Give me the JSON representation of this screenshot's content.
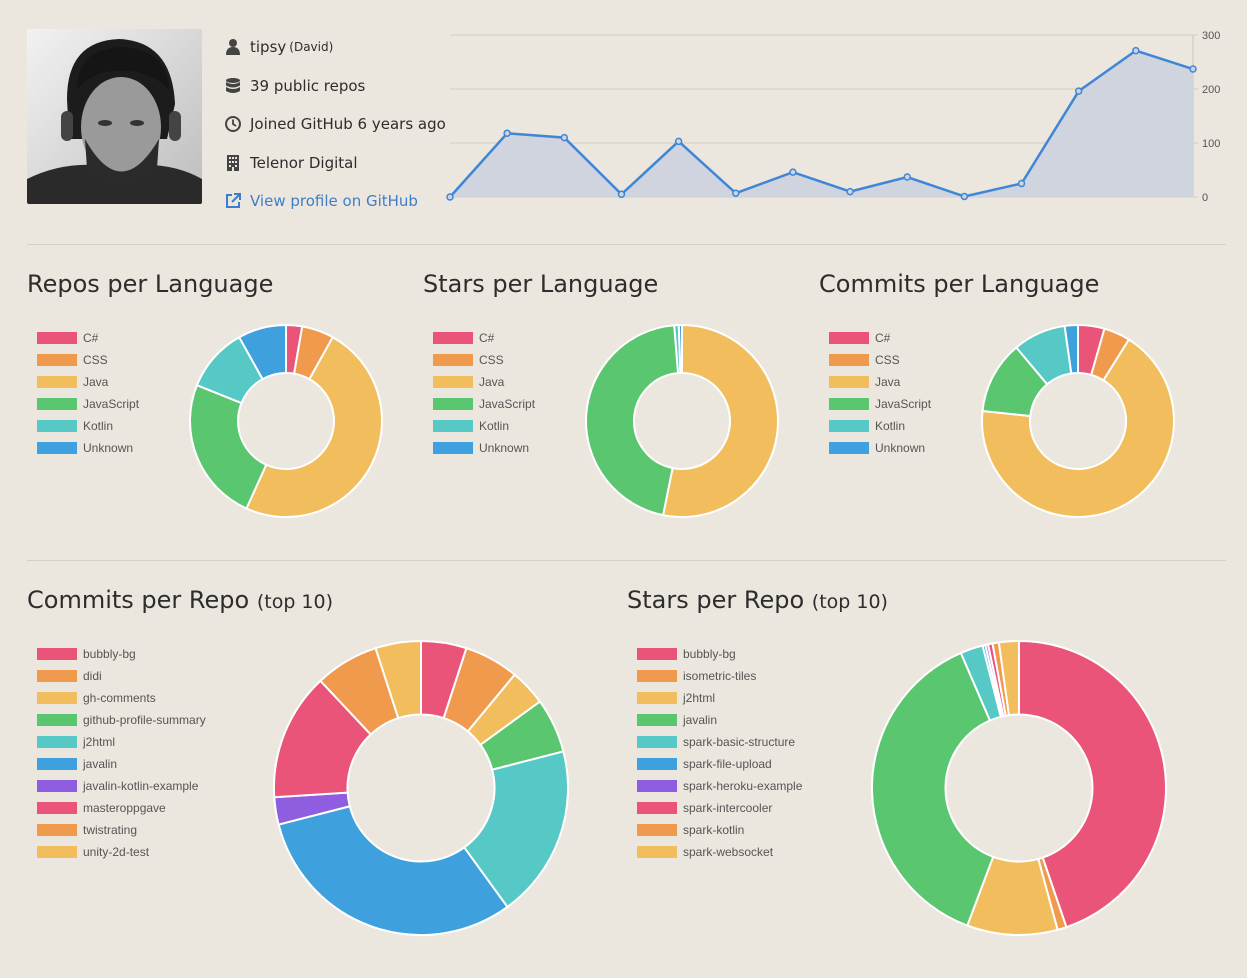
{
  "profile": {
    "username": "tipsy",
    "name": "(David)",
    "repos": "39 public repos",
    "joined": "Joined GitHub 6 years ago",
    "company": "Telenor Digital",
    "link_label": "View profile on GitHub"
  },
  "colors": [
    "#ea5478",
    "#f09a4e",
    "#f2bd5c",
    "#5ac66f",
    "#56c8c6",
    "#3ea1de",
    "#8e5de0",
    "#ea5478",
    "#f09a4e",
    "#f2bd5c"
  ],
  "chart_data": [
    {
      "id": "activity",
      "type": "area",
      "title": "",
      "values": [
        0,
        118,
        110,
        5,
        103,
        7,
        46,
        10,
        37,
        1,
        25,
        196,
        271,
        237
      ],
      "ylim": [
        0,
        300
      ],
      "yticks": [
        0,
        100,
        200,
        300
      ],
      "grid": true
    },
    {
      "id": "repos-per-language",
      "type": "pie",
      "title": "Repos per Language",
      "labels": [
        "C#",
        "CSS",
        "Java",
        "JavaScript",
        "Kotlin",
        "Unknown"
      ],
      "values": [
        1,
        2,
        18,
        9,
        4,
        3
      ]
    },
    {
      "id": "stars-per-language",
      "type": "pie",
      "title": "Stars per Language",
      "labels": [
        "C#",
        "CSS",
        "Java",
        "JavaScript",
        "Kotlin",
        "Unknown"
      ],
      "values": [
        0,
        0,
        700,
        600,
        10,
        7
      ]
    },
    {
      "id": "commits-per-language",
      "type": "pie",
      "title": "Commits per Language",
      "labels": [
        "C#",
        "CSS",
        "Java",
        "JavaScript",
        "Kotlin",
        "Unknown"
      ],
      "values": [
        4,
        4,
        61,
        11,
        8,
        2
      ]
    },
    {
      "id": "commits-per-repo",
      "type": "pie",
      "title": "Commits per Repo",
      "title_suffix": "(top 10)",
      "labels": [
        "bubbly-bg",
        "didi",
        "gh-comments",
        "github-profile-summary",
        "j2html",
        "javalin",
        "javalin-kotlin-example",
        "masteroppgave",
        "twistrating",
        "unity-2d-test"
      ],
      "values": [
        5,
        6,
        4,
        6,
        19,
        31,
        3,
        14,
        7,
        5
      ]
    },
    {
      "id": "stars-per-repo",
      "type": "pie",
      "title": "Stars per Repo",
      "title_suffix": "(top 10)",
      "labels": [
        "bubbly-bg",
        "isometric-tiles",
        "j2html",
        "javalin",
        "spark-basic-structure",
        "spark-file-upload",
        "spark-heroku-example",
        "spark-intercooler",
        "spark-kotlin",
        "spark-websocket"
      ],
      "values": [
        45,
        1,
        10,
        38,
        2.5,
        0.3,
        0.3,
        0.5,
        0.7,
        2.2
      ]
    }
  ]
}
